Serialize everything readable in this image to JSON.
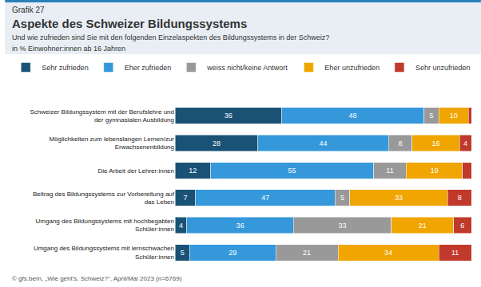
{
  "chart_data": {
    "type": "bar",
    "orientation": "horizontal",
    "stacked": true,
    "title": "Aspekte des Schweizer Bildungssystems",
    "subtitle": "Und wie zufrieden sind Sie mit den folgenden Einzelaspekten des Bildungssystems in der Schweiz?",
    "annotations": [
      "Grafik 27",
      "in % Einwohner:innen ab 16 Jahren",
      "© gfs.bern, „Wie geht’s, Schweiz?“, April/Mai 2023 (n=6769)"
    ],
    "categories": [
      "Schweizer Bildungssystem mit der Berufslehre und\nder gymnasialen Ausbildung",
      "Möglichkeiten zum lebenslangen Lernen/zur\nErwachsenenbildung",
      "Die Arbeit der Lehrer:innen",
      "Beitrag des Bildungssystems zur Vorbereitung auf\ndas Leben",
      "Umgang des Bildungssystems mit hochbegabten\nSchüler:innen",
      "Umgang des Bildungssystems mit lernschwachen\nSchüler:innen"
    ],
    "series": [
      {
        "name": "Sehr zufrieden",
        "color": "#1a5276",
        "values": [
          36,
          28,
          12,
          7,
          4,
          5
        ]
      },
      {
        "name": "Eher zufrieden",
        "color": "#3498db",
        "values": [
          48,
          44,
          55,
          47,
          36,
          29
        ]
      },
      {
        "name": "weiss nicht/keine Antwort",
        "color": "#999999",
        "values": [
          5,
          8,
          11,
          5,
          33,
          21
        ]
      },
      {
        "name": "Eher unzufrieden",
        "color": "#f0a500",
        "values": [
          10,
          16,
          19,
          33,
          21,
          34
        ]
      },
      {
        "name": "Sehr unzufrieden",
        "color": "#c0392b",
        "values": [
          1,
          4,
          3,
          8,
          6,
          11
        ],
        "value_labels": [
          null,
          "4",
          null,
          "8",
          "6",
          "11"
        ]
      }
    ],
    "xlim": [
      0,
      100
    ],
    "data_labels": true,
    "tick_labels": "y",
    "grid": false,
    "legend": "top left"
  }
}
